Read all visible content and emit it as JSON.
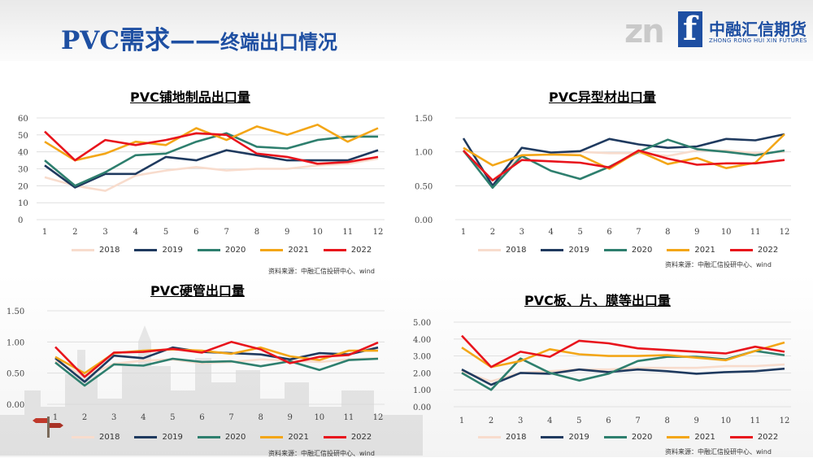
{
  "header": {
    "title": "PVC需求——",
    "title_sub": "终端出口情况",
    "logo_mark": "zn",
    "logo_f": "f",
    "logo_cn": "中融汇信期货",
    "logo_en": "ZHONG RONG HUI XIN FUTURES"
  },
  "colors": {
    "2018": "#f8dccd",
    "2019": "#1f3a5f",
    "2020": "#2e7f6e",
    "2021": "#f3a617",
    "2022": "#e8141c",
    "brand": "#1e4fa2"
  },
  "chart_data": [
    {
      "type": "line",
      "title": "PVC铺地制品出口量",
      "x": [
        1,
        2,
        3,
        4,
        5,
        6,
        7,
        8,
        9,
        10,
        11,
        12
      ],
      "ylim": [
        0,
        60
      ],
      "yticks": [
        "0",
        "10",
        "20",
        "30",
        "40",
        "50",
        "60"
      ],
      "grid": true,
      "legend_position": "bottom",
      "source": "资料来源：中融汇信投研中心、wind",
      "series": [
        {
          "name": "2018",
          "values": [
            25,
            20,
            17,
            26,
            29,
            31,
            29,
            30,
            30,
            32,
            33,
            36
          ]
        },
        {
          "name": "2019",
          "values": [
            32,
            19,
            27,
            27,
            37,
            35,
            41,
            38,
            35,
            35,
            35,
            41
          ]
        },
        {
          "name": "2020",
          "values": [
            35,
            20,
            28,
            38,
            39,
            46,
            51,
            43,
            42,
            47,
            49,
            49
          ]
        },
        {
          "name": "2021",
          "values": [
            46,
            35,
            39,
            46,
            44,
            54,
            47,
            55,
            50,
            56,
            46,
            54
          ]
        },
        {
          "name": "2022",
          "values": [
            52,
            35,
            47,
            44,
            47,
            51,
            50,
            39,
            37,
            33,
            34,
            37
          ]
        }
      ]
    },
    {
      "type": "line",
      "title": "PVC异型材出口量",
      "x": [
        1,
        2,
        3,
        4,
        5,
        6,
        7,
        8,
        9,
        10,
        11,
        12
      ],
      "ylim": [
        0,
        1.5
      ],
      "yticks": [
        "0.00",
        "0.50",
        "1.00",
        "1.50"
      ],
      "grid": true,
      "legend_position": "bottom",
      "source": "资料来源：中融汇信投研中心、wind",
      "series": [
        {
          "name": "2018",
          "values": [
            1.0,
            0.58,
            0.95,
            0.96,
            1.0,
            0.98,
            0.98,
            0.94,
            1.02,
            1.02,
            0.98,
            1.0
          ]
        },
        {
          "name": "2019",
          "values": [
            1.2,
            0.5,
            1.06,
            0.99,
            1.01,
            1.19,
            1.11,
            1.06,
            1.08,
            1.19,
            1.17,
            1.26
          ]
        },
        {
          "name": "2020",
          "values": [
            1.02,
            0.47,
            0.94,
            0.72,
            0.6,
            0.78,
            1.0,
            1.18,
            1.04,
            1.0,
            0.95,
            1.02
          ]
        },
        {
          "name": "2021",
          "values": [
            1.06,
            0.8,
            0.95,
            0.96,
            0.95,
            0.75,
            1.01,
            0.82,
            0.91,
            0.76,
            0.84,
            1.26
          ]
        },
        {
          "name": "2022",
          "values": [
            1.02,
            0.58,
            0.88,
            0.86,
            0.84,
            0.77,
            1.02,
            0.9,
            0.81,
            0.83,
            0.83,
            0.88
          ]
        }
      ]
    },
    {
      "type": "line",
      "title": "PVC硬管出口量",
      "x": [
        1,
        2,
        3,
        4,
        5,
        6,
        7,
        8,
        9,
        10,
        11,
        12
      ],
      "ylim": [
        0,
        1.5
      ],
      "yticks": [
        "0.00",
        "0.50",
        "1.00",
        "1.50"
      ],
      "grid": true,
      "legend_position": "bottom",
      "source": "资料来源：中融汇信投研中心、wind",
      "series": [
        {
          "name": "2018",
          "values": [
            0.7,
            0.45,
            0.65,
            0.7,
            0.72,
            0.66,
            0.68,
            0.72,
            0.7,
            0.68,
            0.72,
            0.74
          ]
        },
        {
          "name": "2019",
          "values": [
            0.74,
            0.36,
            0.78,
            0.74,
            0.91,
            0.84,
            0.82,
            0.8,
            0.72,
            0.82,
            0.8,
            0.91
          ]
        },
        {
          "name": "2020",
          "values": [
            0.67,
            0.3,
            0.64,
            0.62,
            0.73,
            0.68,
            0.69,
            0.61,
            0.69,
            0.55,
            0.71,
            0.73
          ]
        },
        {
          "name": "2021",
          "values": [
            0.76,
            0.5,
            0.82,
            0.86,
            0.88,
            0.86,
            0.81,
            0.91,
            0.77,
            0.71,
            0.86,
            0.86
          ]
        },
        {
          "name": "2022",
          "values": [
            0.92,
            0.44,
            0.83,
            0.84,
            0.89,
            0.83,
            1.0,
            0.88,
            0.66,
            0.76,
            0.79,
            0.99
          ]
        }
      ]
    },
    {
      "type": "line",
      "title": "PVC板、片、膜等出口量",
      "x": [
        1,
        2,
        3,
        4,
        5,
        6,
        7,
        8,
        9,
        10,
        11,
        12
      ],
      "ylim": [
        0,
        5
      ],
      "yticks": [
        "0.00",
        "1.00",
        "2.00",
        "3.00",
        "4.00",
        "5.00"
      ],
      "grid": true,
      "legend_position": "bottom",
      "source": "资料来源：中融汇信投研中心、wind",
      "series": [
        {
          "name": "2018",
          "values": [
            2.1,
            1.5,
            2.0,
            2.1,
            2.2,
            2.2,
            2.3,
            2.3,
            2.3,
            2.4,
            2.4,
            2.5
          ]
        },
        {
          "name": "2019",
          "values": [
            2.2,
            1.3,
            2.0,
            1.95,
            2.2,
            2.05,
            2.2,
            2.1,
            1.95,
            2.05,
            2.1,
            2.25
          ]
        },
        {
          "name": "2020",
          "values": [
            2.0,
            1.0,
            2.85,
            2.0,
            1.55,
            1.95,
            2.7,
            2.95,
            2.95,
            2.8,
            3.3,
            3.05
          ]
        },
        {
          "name": "2021",
          "values": [
            3.5,
            2.35,
            2.7,
            3.4,
            3.1,
            3.0,
            3.0,
            3.05,
            2.9,
            2.75,
            3.3,
            3.8
          ]
        },
        {
          "name": "2022",
          "values": [
            4.2,
            2.35,
            3.25,
            2.95,
            3.9,
            3.75,
            3.45,
            3.35,
            3.25,
            3.15,
            3.55,
            3.25
          ]
        }
      ]
    }
  ]
}
